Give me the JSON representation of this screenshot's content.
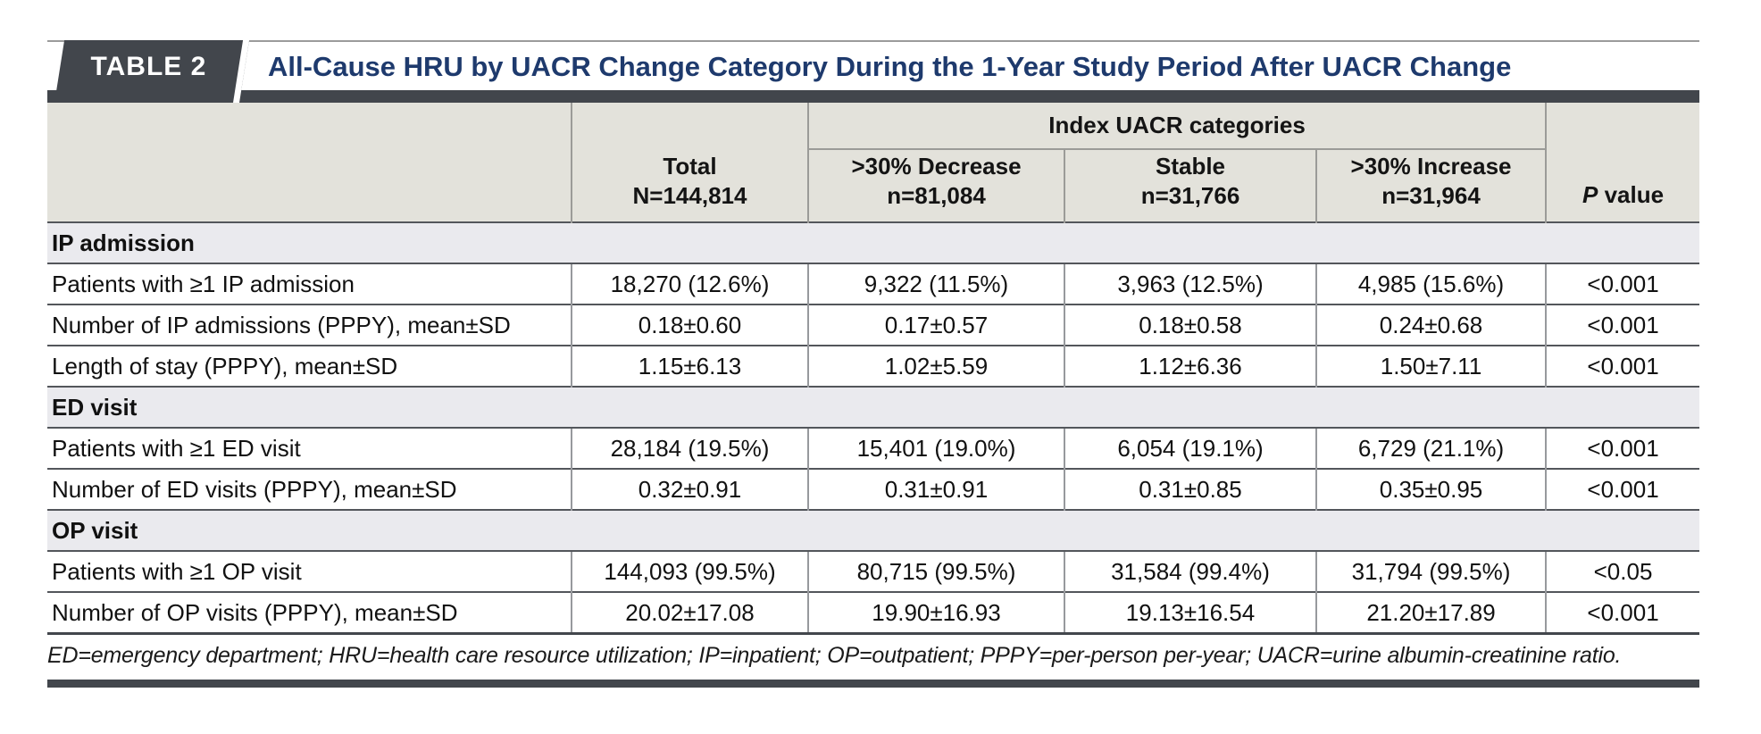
{
  "badge": "TABLE 2",
  "title": "All-Cause HRU by UACR Change Category During the 1-Year Study Period After UACR Change",
  "colors": {
    "bar_dark": "#42464c",
    "title_navy": "#1e3a6d",
    "header_bg": "#e3e2db",
    "section_bg": "#eaeaee"
  },
  "header": {
    "span_label": "Index UACR categories",
    "total": {
      "line1": "Total",
      "line2": "N=144,814"
    },
    "decrease": {
      "line1": ">30% Decrease",
      "line2": "n=81,084"
    },
    "stable": {
      "line1": "Stable",
      "line2": "n=31,766"
    },
    "increase": {
      "line1": ">30% Increase",
      "line2": "n=31,964"
    },
    "pvalue": {
      "italic": "P",
      "rest": " value"
    }
  },
  "sections": [
    {
      "label": "IP admission",
      "rows": [
        {
          "label": "Patients with ≥1 IP admission",
          "values": [
            "18,270 (12.6%)",
            "9,322 (11.5%)",
            "3,963 (12.5%)",
            "4,985 (15.6%)",
            "<0.001"
          ]
        },
        {
          "label": "Number of IP admissions (PPPY), mean±SD",
          "values": [
            "0.18±0.60",
            "0.17±0.57",
            "0.18±0.58",
            "0.24±0.68",
            "<0.001"
          ]
        },
        {
          "label": "Length of stay (PPPY), mean±SD",
          "values": [
            "1.15±6.13",
            "1.02±5.59",
            "1.12±6.36",
            "1.50±7.11",
            "<0.001"
          ]
        }
      ]
    },
    {
      "label": "ED visit",
      "rows": [
        {
          "label": "Patients with ≥1 ED visit",
          "values": [
            "28,184 (19.5%)",
            "15,401 (19.0%)",
            "6,054 (19.1%)",
            "6,729 (21.1%)",
            "<0.001"
          ]
        },
        {
          "label": "Number of ED visits (PPPY), mean±SD",
          "values": [
            "0.32±0.91",
            "0.31±0.91",
            "0.31±0.85",
            "0.35±0.95",
            "<0.001"
          ]
        }
      ]
    },
    {
      "label": "OP visit",
      "rows": [
        {
          "label": "Patients with ≥1 OP visit",
          "values": [
            "144,093 (99.5%)",
            "80,715 (99.5%)",
            "31,584 (99.4%)",
            "31,794 (99.5%)",
            "<0.05"
          ]
        },
        {
          "label": "Number of OP visits (PPPY), mean±SD",
          "values": [
            "20.02±17.08",
            "19.90±16.93",
            "19.13±16.54",
            "21.20±17.89",
            "<0.001"
          ]
        }
      ]
    }
  ],
  "footnote": "ED=emergency department; HRU=health care resource utilization; IP=inpatient; OP=outpatient; PPPY=per-person per-year; UACR=urine albumin-creatinine ratio."
}
